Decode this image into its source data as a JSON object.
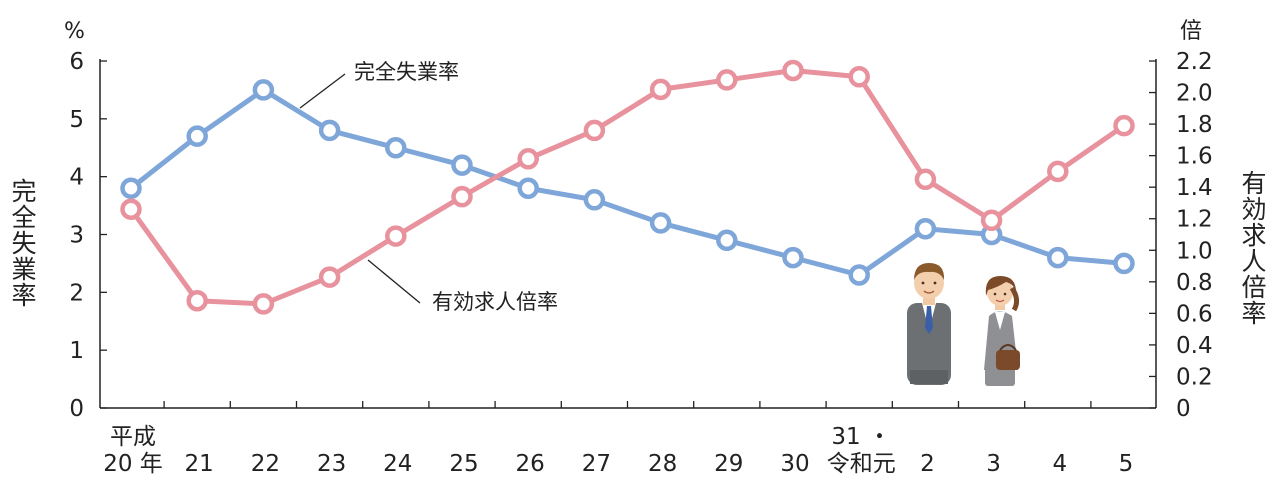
{
  "chart_data": {
    "type": "line",
    "categories": [
      "平成 20 年",
      "21",
      "22",
      "23",
      "24",
      "25",
      "26",
      "27",
      "28",
      "29",
      "30",
      "31・令和元",
      "2",
      "3",
      "4",
      "5"
    ],
    "x_tick_lines": [
      [
        "平成",
        "20 年"
      ],
      [
        "",
        "21"
      ],
      [
        "",
        "22"
      ],
      [
        "",
        "23"
      ],
      [
        "",
        "24"
      ],
      [
        "",
        "25"
      ],
      [
        "",
        "26"
      ],
      [
        "",
        "27"
      ],
      [
        "",
        "28"
      ],
      [
        "",
        "29"
      ],
      [
        "",
        "30"
      ],
      [
        "31 ・",
        "令和元"
      ],
      [
        "",
        "2"
      ],
      [
        "",
        "3"
      ],
      [
        "",
        "4"
      ],
      [
        "",
        "5"
      ]
    ],
    "series": [
      {
        "name": "完全失業率",
        "axis": "left",
        "color": "#7ea6d8",
        "values": [
          3.8,
          4.7,
          5.5,
          4.8,
          4.5,
          4.2,
          3.8,
          3.6,
          3.2,
          2.9,
          2.6,
          2.3,
          3.1,
          3.0,
          2.6,
          2.5
        ]
      },
      {
        "name": "有効求人倍率",
        "axis": "right",
        "color": "#e8929e",
        "values": [
          1.26,
          0.68,
          0.66,
          0.83,
          1.09,
          1.34,
          1.58,
          1.76,
          2.02,
          2.08,
          2.14,
          2.1,
          1.45,
          1.19,
          1.5,
          1.79
        ]
      }
    ],
    "left_axis": {
      "title": "完全失業率",
      "unit": "%",
      "ylim": [
        0,
        6
      ],
      "ticks": [
        "0",
        "1",
        "2",
        "3",
        "4",
        "5",
        "6"
      ]
    },
    "right_axis": {
      "title": "有効求人倍率",
      "unit": "倍",
      "ylim": [
        0,
        2.2
      ],
      "ticks": [
        "0",
        "0.2",
        "0.4",
        "0.6",
        "0.8",
        "1.0",
        "1.2",
        "1.4",
        "1.6",
        "1.8",
        "2.0",
        "2.2"
      ]
    },
    "grid": false,
    "illustration": "businessman-and-businesswoman"
  }
}
